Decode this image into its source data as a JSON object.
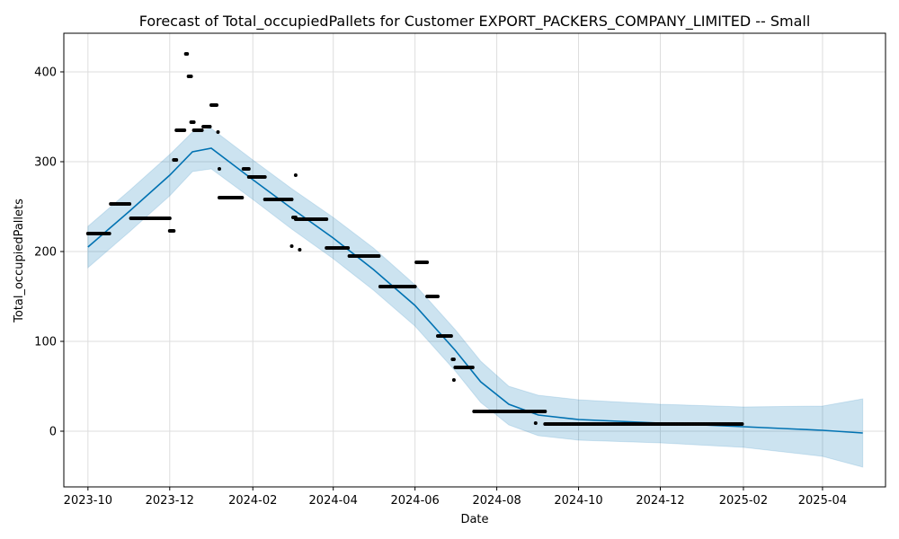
{
  "chart_data": {
    "type": "line",
    "title": "Forecast of Total_occupiedPallets for Customer EXPORT_PACKERS_COMPANY_LIMITED -- Small",
    "xlabel": "Date",
    "ylabel": "Total_occupiedPallets",
    "x_range": [
      "2023-09-13",
      "2025-05-18"
    ],
    "ylim": [
      -62,
      443
    ],
    "x_ticks": [
      "2023-10",
      "2023-12",
      "2024-02",
      "2024-04",
      "2024-06",
      "2024-08",
      "2024-10",
      "2024-12",
      "2025-02",
      "2025-04"
    ],
    "y_ticks": [
      0,
      100,
      200,
      300,
      400
    ],
    "grid": true,
    "colors": {
      "forecast_line": "#0072b2",
      "interval_fill": "#0072b2",
      "observed_points": "#000000",
      "grid": "#dddddd"
    },
    "series": [
      {
        "name": "yhat",
        "kind": "line",
        "points": [
          [
            "2023-10-01",
            205
          ],
          [
            "2023-11-01",
            245
          ],
          [
            "2023-12-01",
            285
          ],
          [
            "2023-12-18",
            311
          ],
          [
            "2024-01-01",
            315
          ],
          [
            "2024-02-01",
            280
          ],
          [
            "2024-03-01",
            248
          ],
          [
            "2024-04-01",
            215
          ],
          [
            "2024-05-01",
            180
          ],
          [
            "2024-06-01",
            140
          ],
          [
            "2024-07-01",
            90
          ],
          [
            "2024-07-20",
            55
          ],
          [
            "2024-08-10",
            30
          ],
          [
            "2024-09-01",
            18
          ],
          [
            "2024-10-01",
            13
          ],
          [
            "2024-12-01",
            9
          ],
          [
            "2025-02-01",
            5
          ],
          [
            "2025-04-01",
            1
          ],
          [
            "2025-05-01",
            -2
          ]
        ]
      },
      {
        "name": "yhat_upper",
        "kind": "band_upper",
        "points": [
          [
            "2023-10-01",
            228
          ],
          [
            "2023-11-01",
            268
          ],
          [
            "2023-12-01",
            308
          ],
          [
            "2023-12-18",
            333
          ],
          [
            "2024-01-01",
            337
          ],
          [
            "2024-02-01",
            302
          ],
          [
            "2024-03-01",
            270
          ],
          [
            "2024-04-01",
            238
          ],
          [
            "2024-05-01",
            204
          ],
          [
            "2024-06-01",
            163
          ],
          [
            "2024-07-01",
            113
          ],
          [
            "2024-07-20",
            78
          ],
          [
            "2024-08-10",
            50
          ],
          [
            "2024-09-01",
            40
          ],
          [
            "2024-10-01",
            35
          ],
          [
            "2024-12-01",
            30
          ],
          [
            "2025-02-01",
            27
          ],
          [
            "2025-04-01",
            28
          ],
          [
            "2025-05-01",
            36
          ]
        ]
      },
      {
        "name": "yhat_lower",
        "kind": "band_lower",
        "points": [
          [
            "2023-10-01",
            182
          ],
          [
            "2023-11-01",
            222
          ],
          [
            "2023-12-01",
            262
          ],
          [
            "2023-12-18",
            289
          ],
          [
            "2024-01-01",
            292
          ],
          [
            "2024-02-01",
            258
          ],
          [
            "2024-03-01",
            225
          ],
          [
            "2024-04-01",
            192
          ],
          [
            "2024-05-01",
            157
          ],
          [
            "2024-06-01",
            117
          ],
          [
            "2024-07-01",
            67
          ],
          [
            "2024-07-20",
            32
          ],
          [
            "2024-08-10",
            7
          ],
          [
            "2024-09-01",
            -5
          ],
          [
            "2024-10-01",
            -10
          ],
          [
            "2024-12-01",
            -13
          ],
          [
            "2025-02-01",
            -18
          ],
          [
            "2025-04-01",
            -28
          ],
          [
            "2025-05-01",
            -40
          ]
        ]
      }
    ],
    "observed": [
      {
        "from": "2023-10-01",
        "to": "2023-10-17",
        "value": 220
      },
      {
        "from": "2023-10-18",
        "to": "2023-11-01",
        "value": 253
      },
      {
        "from": "2023-11-02",
        "to": "2023-12-01",
        "value": 237
      },
      {
        "from": "2023-12-01",
        "to": "2023-12-04",
        "value": 223
      },
      {
        "from": "2023-12-04",
        "to": "2023-12-06",
        "value": 302
      },
      {
        "from": "2023-12-06",
        "to": "2023-12-12",
        "value": 335
      },
      {
        "from": "2023-12-13",
        "to": "2023-12-14",
        "value": 420
      },
      {
        "from": "2023-12-15",
        "to": "2023-12-17",
        "value": 395
      },
      {
        "from": "2023-12-17",
        "to": "2023-12-19",
        "value": 344
      },
      {
        "from": "2023-12-19",
        "to": "2023-12-25",
        "value": 335
      },
      {
        "from": "2023-12-26",
        "to": "2023-12-31",
        "value": 339
      },
      {
        "from": "2024-01-01",
        "to": "2024-01-05",
        "value": 363
      },
      {
        "from": "2024-01-06",
        "to": "2024-01-06",
        "value": 333
      },
      {
        "from": "2024-01-07",
        "to": "2024-01-07",
        "value": 292
      },
      {
        "from": "2024-01-07",
        "to": "2024-01-24",
        "value": 260
      },
      {
        "from": "2024-01-25",
        "to": "2024-01-29",
        "value": 292
      },
      {
        "from": "2024-01-29",
        "to": "2024-02-10",
        "value": 283
      },
      {
        "from": "2024-02-10",
        "to": "2024-03-01",
        "value": 258
      },
      {
        "from": "2024-03-01",
        "to": "2024-03-01",
        "value": 206
      },
      {
        "from": "2024-03-02",
        "to": "2024-03-04",
        "value": 238
      },
      {
        "from": "2024-03-04",
        "to": "2024-03-04",
        "value": 285
      },
      {
        "from": "2024-03-04",
        "to": "2024-03-27",
        "value": 236
      },
      {
        "from": "2024-03-07",
        "to": "2024-03-07",
        "value": 202
      },
      {
        "from": "2024-03-27",
        "to": "2024-04-12",
        "value": 204
      },
      {
        "from": "2024-04-13",
        "to": "2024-05-05",
        "value": 195
      },
      {
        "from": "2024-05-06",
        "to": "2024-06-01",
        "value": 161
      },
      {
        "from": "2024-06-02",
        "to": "2024-06-10",
        "value": 188
      },
      {
        "from": "2024-06-10",
        "to": "2024-06-18",
        "value": 150
      },
      {
        "from": "2024-06-18",
        "to": "2024-06-28",
        "value": 106
      },
      {
        "from": "2024-06-29",
        "to": "2024-06-30",
        "value": 80
      },
      {
        "from": "2024-06-30",
        "to": "2024-06-30",
        "value": 57
      },
      {
        "from": "2024-07-01",
        "to": "2024-07-14",
        "value": 71
      },
      {
        "from": "2024-07-15",
        "to": "2024-09-06",
        "value": 22
      },
      {
        "from": "2024-08-30",
        "to": "2024-08-30",
        "value": 9
      },
      {
        "from": "2024-09-06",
        "to": "2025-01-31",
        "value": 8
      }
    ]
  }
}
